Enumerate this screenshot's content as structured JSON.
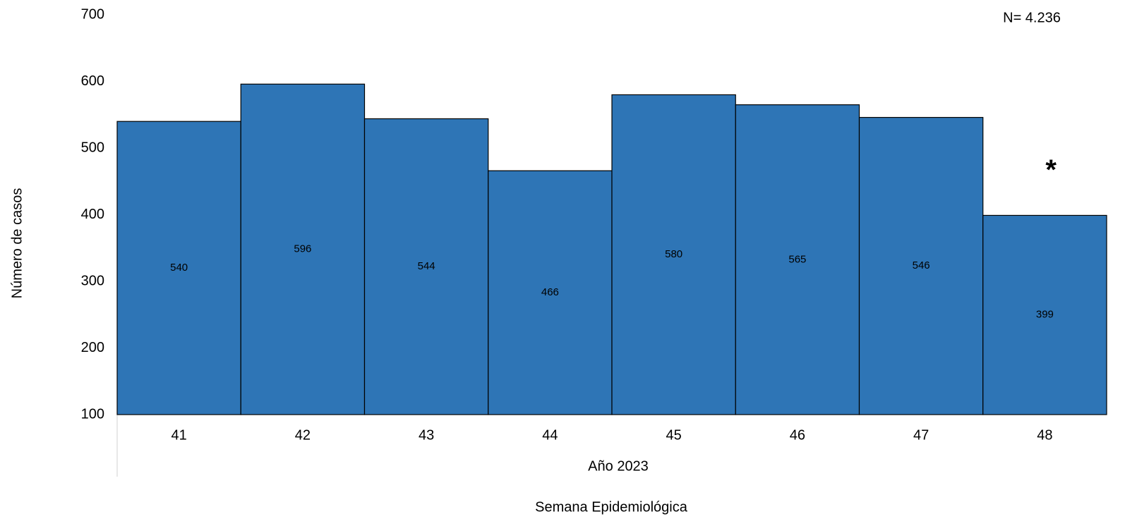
{
  "chart_data": {
    "type": "bar",
    "categories": [
      "41",
      "42",
      "43",
      "44",
      "45",
      "46",
      "47",
      "48"
    ],
    "values": [
      540,
      596,
      544,
      466,
      580,
      565,
      546,
      399
    ],
    "color": "#2e75b6",
    "ylim": [
      100,
      700
    ],
    "yticks": [
      100,
      200,
      300,
      400,
      500,
      600,
      700
    ],
    "group_label": "Año 2023",
    "x_label": "Semana Epidemiológica",
    "y_label": "Número de casos",
    "note": "N= 4.236",
    "marker": "*",
    "marker_color": "#c00000"
  }
}
